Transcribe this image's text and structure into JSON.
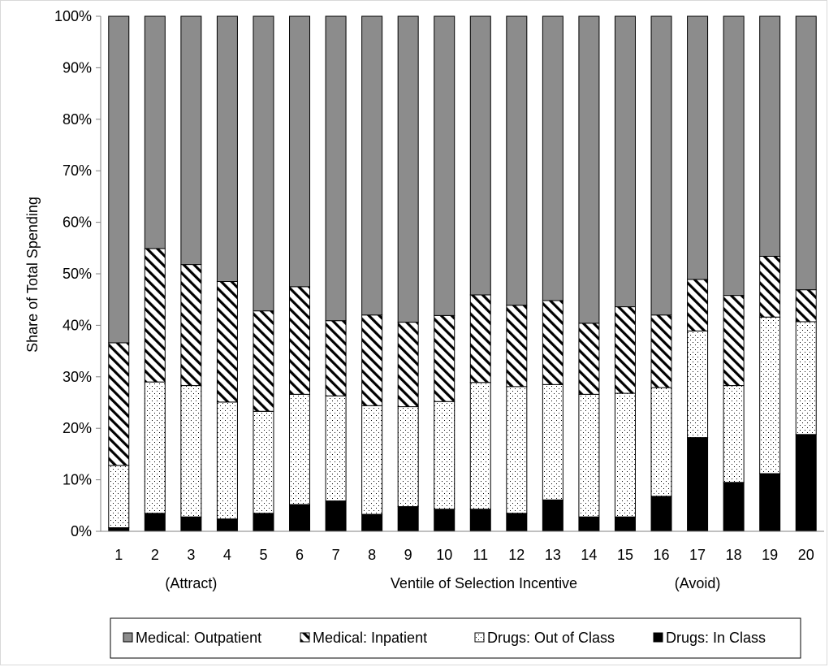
{
  "chart_data": {
    "type": "bar",
    "stacked": true,
    "normalized": true,
    "title": "",
    "ylabel": "Share of Total Spending",
    "xlabel": "Ventile of Selection Incentive",
    "x_annotations": [
      {
        "category": "3",
        "text": "(Attract)"
      },
      {
        "category": "17",
        "text": "(Avoid)"
      }
    ],
    "categories": [
      "1",
      "2",
      "3",
      "4",
      "5",
      "6",
      "7",
      "8",
      "9",
      "10",
      "11",
      "12",
      "13",
      "14",
      "15",
      "16",
      "17",
      "18",
      "19",
      "20"
    ],
    "ylim": [
      0,
      100
    ],
    "yticks": [
      "0%",
      "10%",
      "20%",
      "30%",
      "40%",
      "50%",
      "60%",
      "70%",
      "80%",
      "90%",
      "100%"
    ],
    "grid": false,
    "legend_position": "bottom",
    "series": [
      {
        "name": "Drugs: In Class",
        "pattern": "solid-black",
        "color": "#000000",
        "values": [
          0.7,
          3.5,
          2.8,
          2.4,
          3.5,
          5.2,
          5.9,
          3.3,
          4.8,
          4.3,
          4.3,
          3.5,
          6.1,
          2.8,
          2.8,
          6.8,
          18.2,
          9.5,
          11.2,
          18.8
        ]
      },
      {
        "name": "Drugs: Out of Class",
        "pattern": "dots",
        "color": "#ffffff",
        "values": [
          12.1,
          25.5,
          25.5,
          22.7,
          19.8,
          21.4,
          20.4,
          21.1,
          19.4,
          20.9,
          24.6,
          24.6,
          22.4,
          23.8,
          24.0,
          21.1,
          20.7,
          18.8,
          30.4,
          21.9
        ]
      },
      {
        "name": "Medical: Inpatient",
        "pattern": "diagonal-hatch",
        "color": "#ffffff",
        "values": [
          23.8,
          25.9,
          23.5,
          23.4,
          19.5,
          20.9,
          14.6,
          17.6,
          16.4,
          16.7,
          17.0,
          15.8,
          16.3,
          13.8,
          16.8,
          14.1,
          10.0,
          17.5,
          11.8,
          6.2
        ]
      },
      {
        "name": "Medical: Outpatient",
        "pattern": "solid-gray",
        "color": "#8c8c8c",
        "values": [
          63.4,
          45.1,
          48.2,
          51.5,
          57.2,
          52.5,
          59.1,
          58.0,
          59.4,
          58.1,
          54.1,
          56.1,
          55.2,
          59.6,
          56.4,
          58.0,
          51.1,
          54.2,
          46.6,
          53.1
        ]
      }
    ],
    "legend_order": [
      "Medical: Outpatient",
      "Medical: Inpatient",
      "Drugs: Out of Class",
      "Drugs: In Class"
    ]
  }
}
